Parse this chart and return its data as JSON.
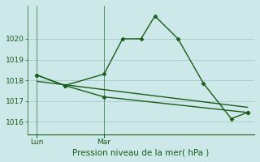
{
  "title": "Pression niveau de la mer( hPa )",
  "bg_color": "#cce8e8",
  "grid_color": "#aacfcf",
  "line_color": "#1a5c1a",
  "axis_color": "#2d6b2d",
  "ylim": [
    1015.4,
    1021.6
  ],
  "yticks": [
    1016,
    1017,
    1018,
    1019,
    1020
  ],
  "xlim": [
    0.0,
    9.8
  ],
  "lun_x": 0.4,
  "mar_x": 3.3,
  "line1_x": [
    0.4,
    1.6,
    3.3,
    4.1,
    4.9,
    5.5,
    6.5,
    7.6,
    8.8,
    9.5
  ],
  "line1_y": [
    1018.25,
    1017.75,
    1018.3,
    1020.0,
    1020.0,
    1021.1,
    1020.0,
    1017.85,
    1016.15,
    1016.45
  ],
  "line2_x": [
    0.4,
    1.6,
    3.3,
    9.5
  ],
  "line2_y": [
    1018.25,
    1017.75,
    1017.2,
    1016.45
  ],
  "line3_x": [
    0.4,
    9.5
  ],
  "line3_y": [
    1017.95,
    1016.7
  ],
  "marker": "D",
  "marker_size": 2.5,
  "linewidth": 1.0,
  "ytick_fontsize": 6.5,
  "xtick_fontsize": 6.5,
  "title_fontsize": 7.5
}
